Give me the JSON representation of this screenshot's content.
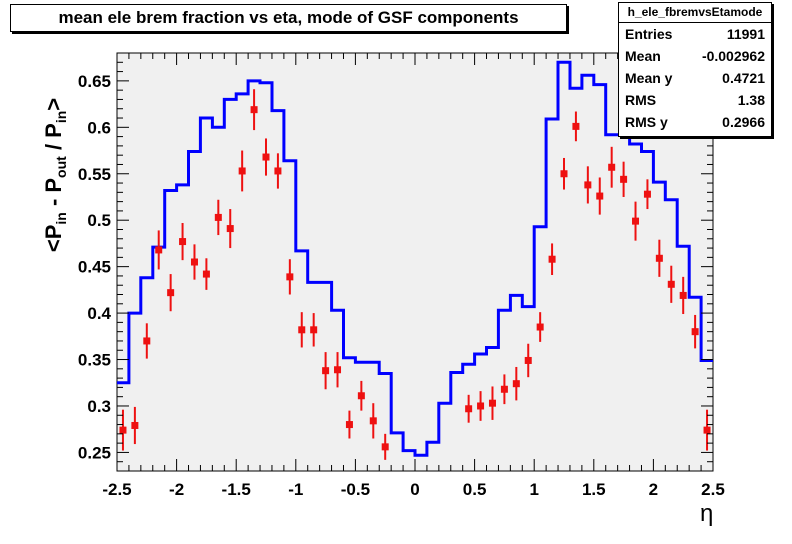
{
  "title": "mean ele brem fraction vs eta, mode of GSF components",
  "stats": {
    "name": "h_ele_fbremvsEtamode",
    "rows": [
      {
        "label": "Entries",
        "value": "11991"
      },
      {
        "label": "Mean",
        "value": "-0.002962"
      },
      {
        "label": "Mean y",
        "value": "0.4721"
      },
      {
        "label": "RMS",
        "value": "1.38"
      },
      {
        "label": "RMS y",
        "value": "0.2966"
      }
    ]
  },
  "chart_data": {
    "type": "line",
    "title": "mean ele brem fraction vs eta, mode of GSF components",
    "xlabel": "η",
    "ylabel": "<P_in - P_out / P_in>",
    "xlim": [
      -2.5,
      2.5
    ],
    "ylim": [
      0.23,
      0.68
    ],
    "xticks": [
      -2.5,
      -2,
      -1.5,
      -1,
      -0.5,
      0,
      0.5,
      1,
      1.5,
      2,
      2.5
    ],
    "xtick_labels": [
      "-2.5",
      "-2",
      "-1.5",
      "-1",
      "-0.5",
      "0",
      "0.5",
      "1",
      "1.5",
      "2",
      "2.5"
    ],
    "yticks": [
      0.25,
      0.3,
      0.35,
      0.4,
      0.45,
      0.5,
      0.55,
      0.6,
      0.65
    ],
    "ytick_labels": [
      "0.25",
      "0.3",
      "0.35",
      "0.4",
      "0.45",
      "0.5",
      "0.55",
      "0.6",
      "0.65"
    ],
    "grid": false,
    "colors": {
      "frame_bg": "#f0f0f0",
      "histogram": "#0000ff",
      "points": "#ee1111"
    },
    "series": [
      {
        "style": "step",
        "bin_edges": [
          -2.5,
          -2.4,
          -2.3,
          -2.2,
          -2.1,
          -2.0,
          -1.9,
          -1.8,
          -1.7,
          -1.6,
          -1.5,
          -1.4,
          -1.3,
          -1.2,
          -1.1,
          -1.0,
          -0.9,
          -0.8,
          -0.7,
          -0.6,
          -0.5,
          -0.4,
          -0.3,
          -0.2,
          -0.1,
          0.0,
          0.1,
          0.2,
          0.3,
          0.4,
          0.5,
          0.6,
          0.7,
          0.8,
          0.9,
          1.0,
          1.1,
          1.2,
          1.3,
          1.4,
          1.5,
          1.6,
          1.7,
          1.8,
          1.9,
          2.0,
          2.1,
          2.2,
          2.3,
          2.4,
          2.5
        ],
        "values": [
          0.325,
          0.4,
          0.438,
          0.471,
          0.532,
          0.538,
          0.574,
          0.61,
          0.6,
          0.63,
          0.636,
          0.65,
          0.648,
          0.618,
          0.564,
          0.467,
          0.433,
          0.433,
          0.403,
          0.352,
          0.347,
          0.347,
          0.335,
          0.271,
          0.252,
          0.247,
          0.261,
          0.303,
          0.336,
          0.345,
          0.356,
          0.363,
          0.403,
          0.419,
          0.407,
          0.493,
          0.609,
          0.67,
          0.642,
          0.656,
          0.646,
          0.592,
          0.592,
          0.582,
          0.574,
          0.541,
          0.522,
          0.472,
          0.417,
          0.349
        ]
      },
      {
        "style": "points-errorbars",
        "x": [
          -2.45,
          -2.35,
          -2.25,
          -2.15,
          -2.05,
          -1.95,
          -1.85,
          -1.75,
          -1.65,
          -1.55,
          -1.45,
          -1.35,
          -1.25,
          -1.15,
          -1.05,
          -0.95,
          -0.85,
          -0.75,
          -0.65,
          -0.55,
          -0.45,
          -0.35,
          -0.25,
          0.45,
          0.55,
          0.65,
          0.75,
          0.85,
          0.95,
          1.05,
          1.15,
          1.25,
          1.35,
          1.45,
          1.55,
          1.65,
          1.75,
          1.85,
          1.95,
          2.05,
          2.15,
          2.25,
          2.35,
          2.45
        ],
        "y": [
          0.274,
          0.279,
          0.37,
          0.468,
          0.422,
          0.477,
          0.455,
          0.442,
          0.503,
          0.491,
          0.553,
          0.619,
          0.568,
          0.553,
          0.439,
          0.382,
          0.382,
          0.338,
          0.339,
          0.28,
          0.311,
          0.284,
          0.256,
          0.297,
          0.3,
          0.303,
          0.318,
          0.324,
          0.349,
          0.385,
          0.458,
          0.55,
          0.601,
          0.538,
          0.526,
          0.557,
          0.544,
          0.499,
          0.528,
          0.459,
          0.431,
          0.419,
          0.38,
          0.274
        ],
        "err": [
          0.022,
          0.02,
          0.019,
          0.021,
          0.02,
          0.02,
          0.019,
          0.017,
          0.019,
          0.021,
          0.022,
          0.022,
          0.02,
          0.019,
          0.019,
          0.019,
          0.018,
          0.02,
          0.019,
          0.015,
          0.016,
          0.019,
          0.014,
          0.015,
          0.016,
          0.018,
          0.016,
          0.018,
          0.018,
          0.016,
          0.017,
          0.017,
          0.016,
          0.02,
          0.02,
          0.022,
          0.019,
          0.021,
          0.016,
          0.02,
          0.02,
          0.02,
          0.018,
          0.022
        ]
      }
    ]
  }
}
